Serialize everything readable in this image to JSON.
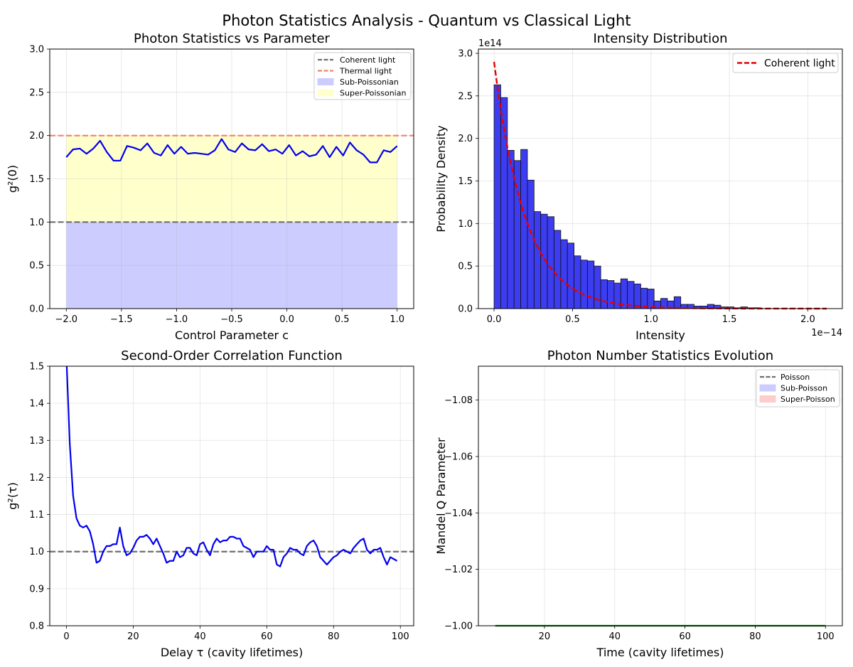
{
  "figure": {
    "title": "Photon Statistics Analysis - Quantum vs Classical Light"
  },
  "chart_data": [
    {
      "type": "line",
      "title": "Photon Statistics vs Parameter",
      "xlabel": "Control Parameter c",
      "ylabel": "g²(0)",
      "xlim": [
        -2.15,
        1.15
      ],
      "ylim": [
        0,
        3.0
      ],
      "xticks": [
        -2.0,
        -1.5,
        -1.0,
        -0.5,
        0.0,
        0.5,
        1.0
      ],
      "xtick_labels": [
        "−2.0",
        "−1.5",
        "−1.0",
        "−0.5",
        "0.0",
        "0.5",
        "1.0"
      ],
      "yticks": [
        0.0,
        0.5,
        1.0,
        1.5,
        2.0,
        2.5,
        3.0
      ],
      "ytick_labels": [
        "0.0",
        "0.5",
        "1.0",
        "1.5",
        "2.0",
        "2.5",
        "3.0"
      ],
      "grid": true,
      "legend_position": "upper right",
      "x_range": [
        -2.0,
        1.0
      ],
      "series": [
        {
          "values": [
            1.75,
            1.84,
            1.85,
            1.79,
            1.85,
            1.94,
            1.81,
            1.71,
            1.71,
            1.88,
            1.86,
            1.83,
            1.91,
            1.8,
            1.77,
            1.89,
            1.79,
            1.87,
            1.79,
            1.8,
            1.79,
            1.78,
            1.83,
            1.96,
            1.84,
            1.81,
            1.91,
            1.84,
            1.83,
            1.9,
            1.82,
            1.84,
            1.79,
            1.89,
            1.77,
            1.82,
            1.76,
            1.78,
            1.88,
            1.75,
            1.87,
            1.77,
            1.92,
            1.83,
            1.78,
            1.69,
            1.69,
            1.83,
            1.81,
            1.88
          ],
          "color": "#0000ee"
        }
      ],
      "reference_lines": [
        {
          "name": "Coherent light",
          "y": 1.0,
          "color": "#6e6e6e",
          "style": "dashed"
        },
        {
          "name": "Thermal light",
          "y": 2.0,
          "color": "#f08070",
          "style": "dashed"
        }
      ],
      "fill_regions": [
        {
          "name": "Sub-Poissonian",
          "y_from": 0,
          "y_to": 1.0,
          "color": "#ccccff"
        },
        {
          "name": "Super-Poissonian",
          "y_from": 1.0,
          "y_to": 2.0,
          "color": "#ffffcc"
        }
      ],
      "legend": [
        "Coherent light",
        "Thermal light",
        "Sub-Poissonian",
        "Super-Poissonian"
      ]
    },
    {
      "type": "bar",
      "title": "Intensity Distribution",
      "xlabel": "Intensity",
      "ylabel": "Probability Density",
      "x_offset_label": "1e−14",
      "y_offset_label": "1e14",
      "xlim": [
        -0.1,
        2.22
      ],
      "ylim": [
        0,
        3.05
      ],
      "xticks": [
        0.0,
        0.5,
        1.0,
        1.5,
        2.0
      ],
      "xtick_labels": [
        "0.0",
        "0.5",
        "1.0",
        "1.5",
        "2.0"
      ],
      "yticks": [
        0.0,
        0.5,
        1.0,
        1.5,
        2.0,
        2.5,
        3.0
      ],
      "ytick_labels": [
        "0.0",
        "0.5",
        "1.0",
        "1.5",
        "2.0",
        "2.5",
        "3.0"
      ],
      "grid": true,
      "legend_position": "upper right",
      "bin_width": 0.0425,
      "histogram_values": [
        2.63,
        2.48,
        1.86,
        1.74,
        1.87,
        1.51,
        1.14,
        1.11,
        1.08,
        0.92,
        0.81,
        0.77,
        0.62,
        0.57,
        0.56,
        0.5,
        0.34,
        0.33,
        0.3,
        0.35,
        0.32,
        0.29,
        0.24,
        0.23,
        0.09,
        0.12,
        0.09,
        0.14,
        0.05,
        0.05,
        0.03,
        0.03,
        0.05,
        0.04,
        0.02,
        0.02,
        0.01,
        0.02,
        0.01,
        0.01
      ],
      "bar_color": "#3c3cf0",
      "curve": {
        "name": "Coherent light",
        "y0": 2.9,
        "decay": 0.2,
        "x_range": [
          0.0,
          2.12
        ],
        "color": "#e60000"
      },
      "legend": [
        "Coherent light"
      ]
    },
    {
      "type": "line",
      "title": "Second-Order Correlation Function",
      "xlabel": "Delay τ (cavity lifetimes)",
      "ylabel": "g²(τ)",
      "xlim": [
        -5,
        104
      ],
      "ylim": [
        0.8,
        1.5
      ],
      "xticks": [
        0,
        20,
        40,
        60,
        80,
        100
      ],
      "xtick_labels": [
        "0",
        "20",
        "40",
        "60",
        "80",
        "100"
      ],
      "yticks": [
        0.8,
        0.9,
        1.0,
        1.1,
        1.2,
        1.3,
        1.4,
        1.5
      ],
      "ytick_labels": [
        "0.8",
        "0.9",
        "1.0",
        "1.1",
        "1.2",
        "1.3",
        "1.4",
        "1.5"
      ],
      "grid": true,
      "x": [
        0,
        1,
        2,
        3,
        4,
        5,
        6,
        7,
        8,
        9,
        10,
        11,
        12,
        13,
        14,
        15,
        16,
        17,
        18,
        19,
        20,
        21,
        22,
        23,
        24,
        25,
        26,
        27,
        28,
        29,
        30,
        31,
        32,
        33,
        34,
        35,
        36,
        37,
        38,
        39,
        40,
        41,
        42,
        43,
        44,
        45,
        46,
        47,
        48,
        49,
        50,
        51,
        52,
        53,
        54,
        55,
        56,
        57,
        58,
        59,
        60,
        61,
        62,
        63,
        64,
        65,
        66,
        67,
        68,
        69,
        70,
        71,
        72,
        73,
        74,
        75,
        76,
        77,
        78,
        79,
        80,
        81,
        82,
        83,
        84,
        85,
        86,
        87,
        88,
        89,
        90,
        91,
        92,
        93,
        94,
        95,
        96,
        97,
        98,
        99
      ],
      "series": [
        {
          "values": [
            1.52,
            1.29,
            1.15,
            1.09,
            1.07,
            1.065,
            1.07,
            1.055,
            1.02,
            0.97,
            0.975,
            1.0,
            1.015,
            1.015,
            1.02,
            1.02,
            1.065,
            1.015,
            0.99,
            0.995,
            1.01,
            1.03,
            1.04,
            1.04,
            1.045,
            1.035,
            1.02,
            1.035,
            1.015,
            0.995,
            0.97,
            0.975,
            0.975,
            1.0,
            0.985,
            0.99,
            1.01,
            1.01,
            0.995,
            0.99,
            1.02,
            1.025,
            1.005,
            0.99,
            1.02,
            1.035,
            1.025,
            1.03,
            1.03,
            1.04,
            1.04,
            1.035,
            1.035,
            1.015,
            1.01,
            1.005,
            0.985,
            1.0,
            1.0,
            1.0,
            1.015,
            1.005,
            1.005,
            0.965,
            0.96,
            0.985,
            0.995,
            1.01,
            1.005,
            1.005,
            0.995,
            0.99,
            1.015,
            1.025,
            1.03,
            1.015,
            0.985,
            0.975,
            0.965,
            0.975,
            0.985,
            0.99,
            1.0,
            1.005,
            1.0,
            0.995,
            1.01,
            1.02,
            1.03,
            1.035,
            1.005,
            0.995,
            1.005,
            1.005,
            1.01,
            0.985,
            0.965,
            0.985,
            0.98,
            0.975
          ],
          "color": "#0000ee"
        }
      ],
      "reference_lines": [
        {
          "y": 1.0,
          "color": "#6e6e6e",
          "style": "dashed"
        }
      ]
    },
    {
      "type": "line",
      "title": "Photon Number Statistics Evolution",
      "xlabel": "Time (cavity lifetimes)",
      "ylabel": "Mandel Q Parameter",
      "xlim": [
        1.2,
        104.8
      ],
      "ylim": [
        -1.0,
        -1.092
      ],
      "yaxis_inverted": true,
      "xticks": [
        20,
        40,
        60,
        80,
        100
      ],
      "xtick_labels": [
        "20",
        "40",
        "60",
        "80",
        "100"
      ],
      "yticks": [
        -1.0,
        -1.02,
        -1.04,
        -1.06,
        -1.08
      ],
      "ytick_labels": [
        "−1.00",
        "−1.02",
        "−1.04",
        "−1.06",
        "−1.08"
      ],
      "grid": true,
      "legend_position": "upper right",
      "series": [
        {
          "x": [
            6,
            100
          ],
          "values": [
            -1.0,
            -1.0
          ],
          "color": "#007a00"
        }
      ],
      "legend_entries": [
        {
          "name": "Poisson",
          "kind": "line",
          "color": "#6e6e6e"
        },
        {
          "name": "Sub-Poisson",
          "kind": "patch",
          "color": "#ccccff"
        },
        {
          "name": "Super-Poisson",
          "kind": "patch",
          "color": "#ffcccc"
        }
      ]
    }
  ]
}
